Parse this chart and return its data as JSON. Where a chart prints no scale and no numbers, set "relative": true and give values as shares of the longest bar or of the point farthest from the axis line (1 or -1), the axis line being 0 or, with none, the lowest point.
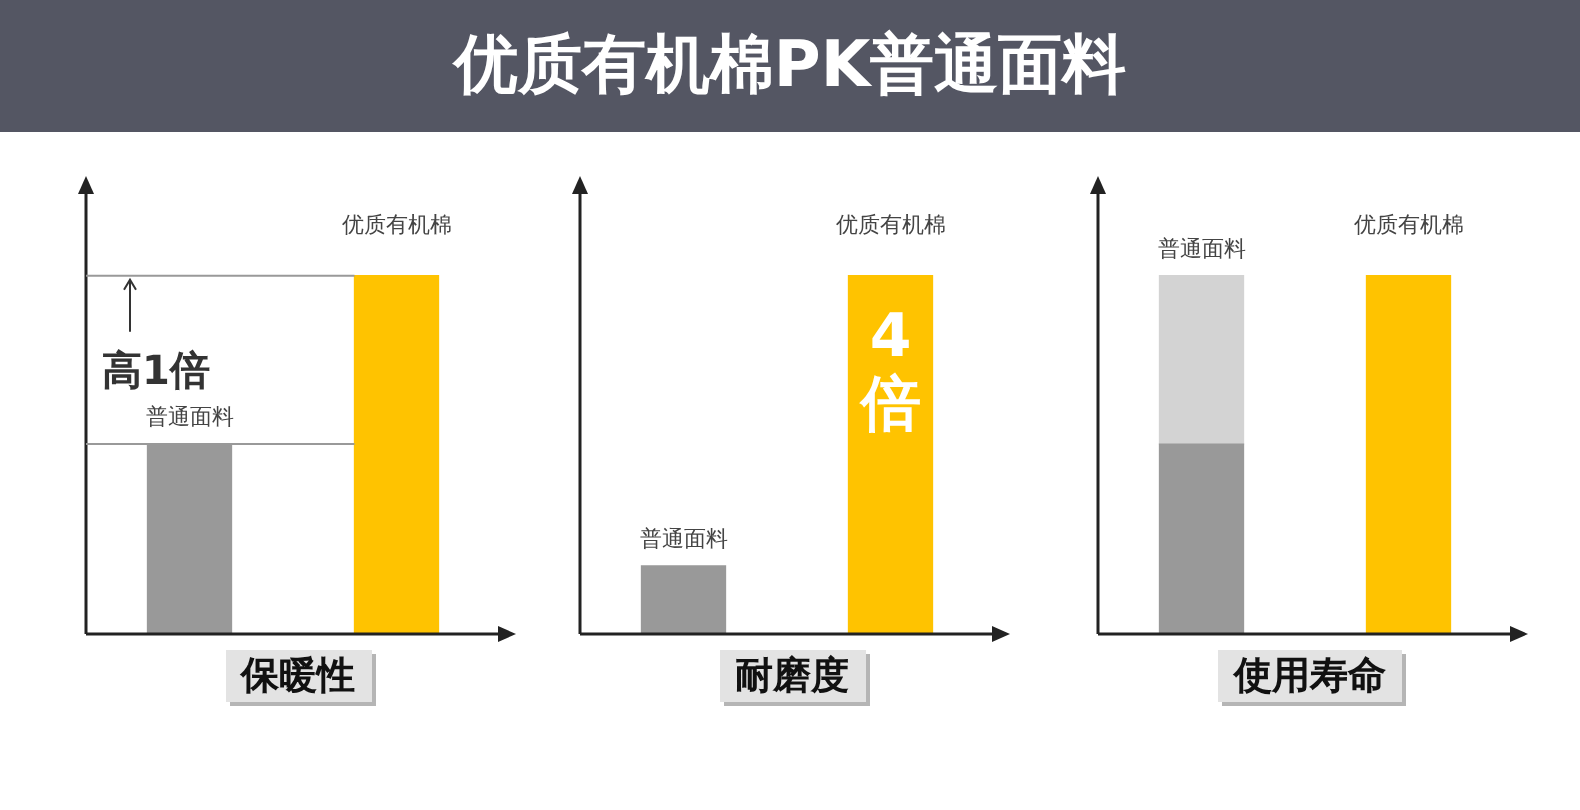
{
  "chart_data": [
    {
      "type": "other",
      "title": "优质有机棉PK普通面料"
    },
    {
      "type": "bar",
      "xlabel": "保暖性",
      "relative": true,
      "categories": [
        "普通面料",
        "优质有机棉"
      ],
      "values": [
        0.53,
        1
      ],
      "colors": [
        "#999999",
        "#ffc300"
      ],
      "annotations": [
        "高1倍"
      ],
      "ref_lines": [
        {
          "axis": "y",
          "value": 0.53,
          "color": "#999999"
        },
        {
          "axis": "y",
          "value": 1,
          "color": "#999999"
        }
      ]
    },
    {
      "type": "bar",
      "xlabel": "耐磨度",
      "relative": true,
      "categories": [
        "普通面料",
        "优质有机棉"
      ],
      "values": [
        0.19,
        1
      ],
      "colors": [
        "#999999",
        "#ffc300"
      ],
      "annotations": [
        "4倍"
      ]
    },
    {
      "type": "bar",
      "xlabel": "使用寿命",
      "relative": true,
      "stacked": true,
      "categories": [
        "普通面料",
        "优质有机棉"
      ],
      "series": [
        {
          "values": [
            0.53,
            1
          ],
          "colors": [
            "#999999",
            "#ffc300"
          ]
        },
        {
          "values": [
            0.47,
            null
          ],
          "color": "#d3d3d3"
        }
      ]
    }
  ]
}
